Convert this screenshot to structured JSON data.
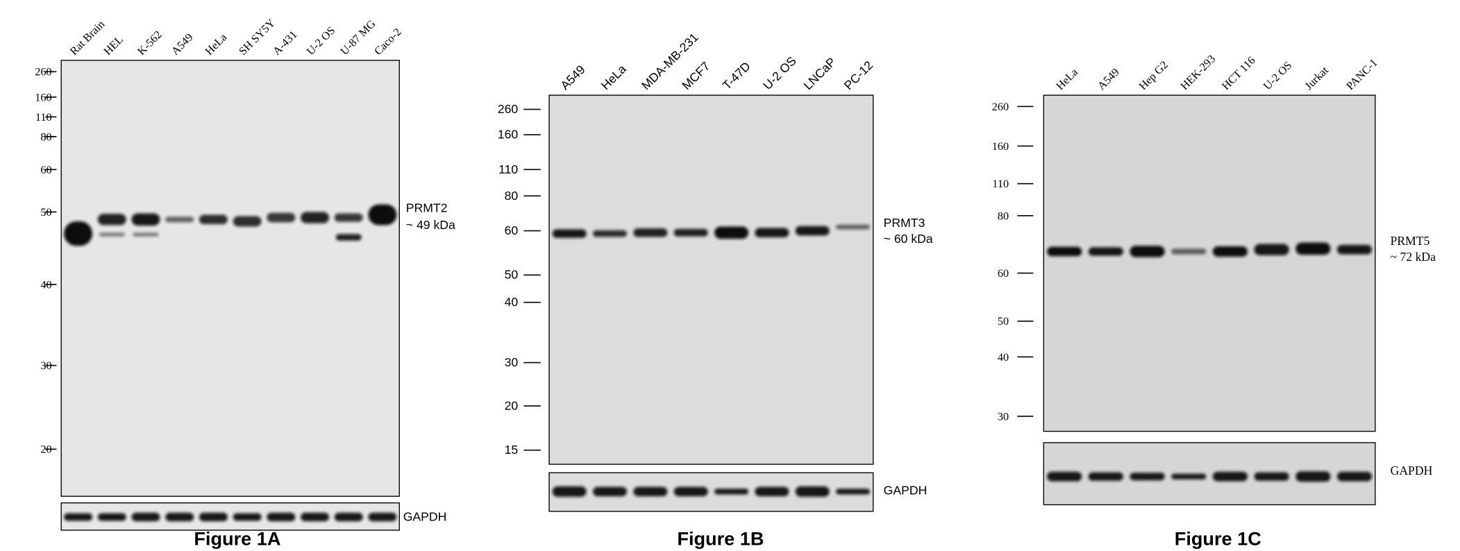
{
  "panels": [
    {
      "lanes": [
        "Rat Brain",
        "HEL",
        "K-562",
        "A549",
        "HeLa",
        "SH SY5Y",
        "A-431",
        "U-2 OS",
        "U-87 MG",
        "Caco-2"
      ],
      "markers": [
        "260",
        "160",
        "110",
        "80",
        "60",
        "50",
        "40",
        "30",
        "20"
      ],
      "target": "PRMT2",
      "size": "~ 49  kDa",
      "loading": "GAPDH",
      "caption": "Figure 1A"
    },
    {
      "lanes": [
        "A549",
        "HeLa",
        "MDA-MB-231",
        "MCF7",
        "T-47D",
        "U-2 OS",
        "LNCaP",
        "PC-12"
      ],
      "markers": [
        "260",
        "160",
        "110",
        "80",
        "60",
        "50",
        "40",
        "30",
        "20",
        "15"
      ],
      "target": "PRMT3",
      "size": "~ 60 kDa",
      "loading": "GAPDH",
      "caption": "Figure 1B"
    },
    {
      "lanes": [
        "HeLa",
        "A549",
        "Hep G2",
        "HEK-293",
        "HCT 116",
        "U-2 OS",
        "Jurkat",
        "PANC-1"
      ],
      "markers": [
        "260",
        "160",
        "110",
        "80",
        "60",
        "50",
        "40",
        "30"
      ],
      "target": "PRMT5",
      "size": "~ 72 kDa",
      "loading": "GAPDH",
      "caption": "Figure 1C"
    }
  ]
}
